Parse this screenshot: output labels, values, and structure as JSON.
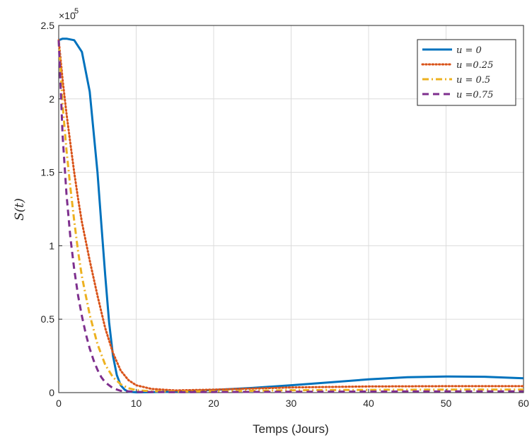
{
  "chart_data": {
    "type": "line",
    "title": "",
    "xlabel": "Temps (Jours)",
    "ylabel": "S(t)",
    "exponent_label": "×10",
    "exponent_power": "5",
    "xlim": [
      0,
      60
    ],
    "ylim": [
      0,
      250000
    ],
    "grid": true,
    "legend_position": "top-right",
    "x_ticks": [
      0,
      10,
      20,
      30,
      40,
      50,
      60
    ],
    "x_tick_labels": [
      "0",
      "10",
      "20",
      "30",
      "40",
      "50",
      "60"
    ],
    "y_ticks": [
      0,
      50000,
      100000,
      150000,
      200000,
      250000
    ],
    "y_tick_labels": [
      "0",
      "0.5",
      "1",
      "1.5",
      "2",
      "2.5"
    ],
    "series": [
      {
        "name": "u = 0",
        "color": "#0072BD",
        "style": "solid",
        "x": [
          0,
          0.5,
          1,
          2,
          3,
          4,
          5,
          5.5,
          6,
          6.5,
          7,
          7.5,
          8,
          8.5,
          9,
          10,
          12,
          15,
          20,
          25,
          30,
          35,
          40,
          45,
          50,
          55,
          60
        ],
        "y": [
          240000,
          241000,
          241000,
          240000,
          232000,
          205000,
          150000,
          115000,
          80000,
          48000,
          25000,
          12000,
          5000,
          2000,
          600,
          200,
          300,
          700,
          1800,
          3200,
          5000,
          7000,
          9000,
          10500,
          11000,
          10800,
          9800
        ]
      },
      {
        "name": "u =0.25",
        "color": "#D95319",
        "style": "dotted",
        "x": [
          0,
          0.5,
          1,
          1.5,
          2,
          2.5,
          3,
          4,
          5,
          6,
          7,
          8,
          9,
          10,
          12,
          15,
          20,
          30,
          40,
          50,
          60
        ],
        "y": [
          240000,
          213000,
          190000,
          170000,
          150000,
          132000,
          116000,
          90000,
          66000,
          44000,
          27000,
          15000,
          8500,
          5000,
          2500,
          1500,
          2000,
          3500,
          4200,
          4400,
          4400
        ]
      },
      {
        "name": "u = 0.5",
        "color": "#EDB120",
        "style": "dashdot",
        "x": [
          0,
          0.5,
          1,
          1.5,
          2,
          2.5,
          3,
          4,
          5,
          6,
          7,
          8,
          9,
          10,
          12,
          15,
          20,
          30,
          40,
          50,
          60
        ],
        "y": [
          240000,
          196000,
          165000,
          140000,
          117000,
          96000,
          79000,
          53000,
          33000,
          19000,
          10500,
          5700,
          3000,
          1700,
          900,
          700,
          900,
          1600,
          1900,
          2000,
          2000
        ]
      },
      {
        "name": "u =0.75",
        "color": "#7E2F8E",
        "style": "dashed",
        "x": [
          0,
          0.5,
          1,
          1.5,
          2,
          2.5,
          3,
          3.5,
          4,
          4.5,
          5,
          5.5,
          6,
          7,
          8,
          10,
          15,
          20,
          30,
          40,
          50,
          60
        ],
        "y": [
          240000,
          175000,
          135000,
          106000,
          84000,
          66000,
          52000,
          40000,
          30000,
          22000,
          15500,
          10500,
          7000,
          3000,
          1200,
          500,
          300,
          400,
          600,
          700,
          800,
          800
        ]
      }
    ]
  }
}
